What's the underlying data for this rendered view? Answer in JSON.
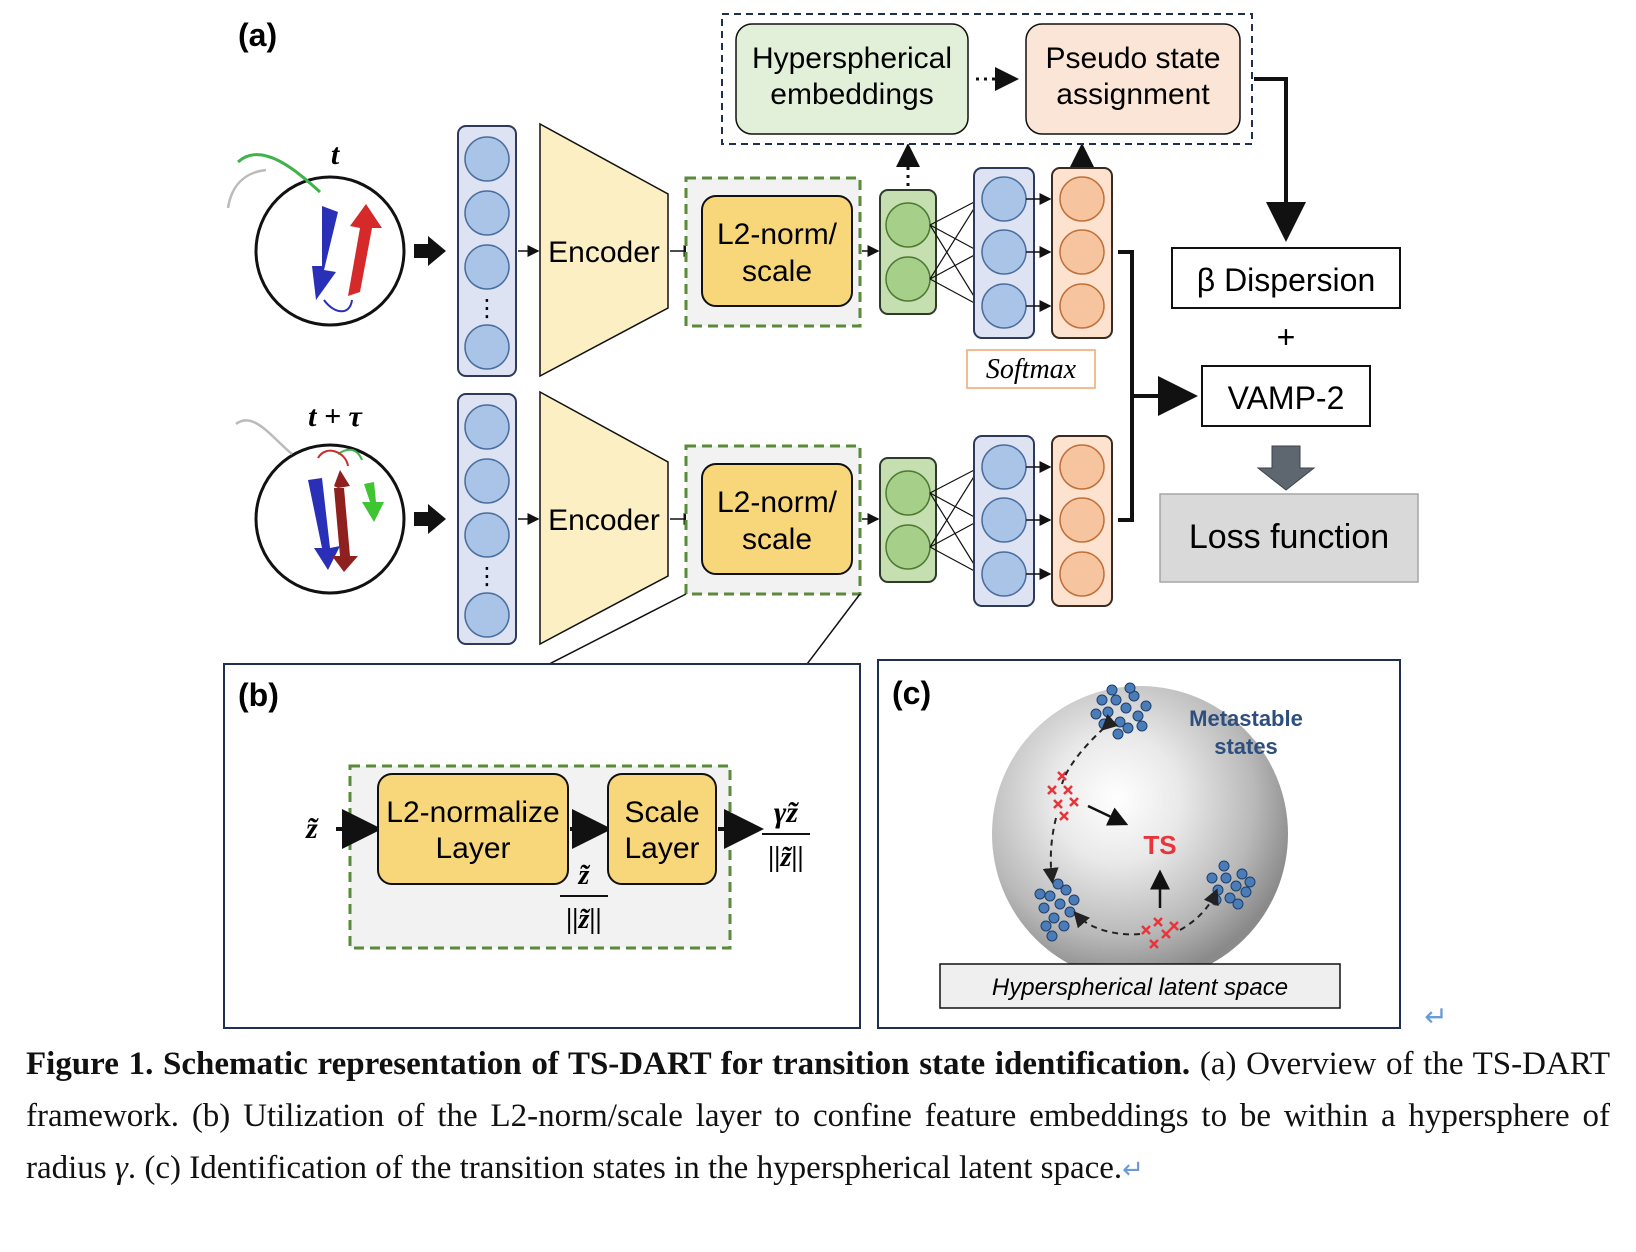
{
  "panel_labels": {
    "a": "(a)",
    "b": "(b)",
    "c": "(c)"
  },
  "panel_a": {
    "time_t": "t",
    "time_t_tau": "t + τ",
    "encoder_top": "Encoder",
    "encoder_bottom": "Encoder",
    "l2_top": [
      "L2-norm/",
      "scale"
    ],
    "l2_bottom": [
      "L2-norm/",
      "scale"
    ],
    "hyperspherical_embeddings": [
      "Hyperspherical",
      "embeddings"
    ],
    "pseudo_state_assignment": [
      "Pseudo state",
      "assignment"
    ],
    "softmax": "Softmax",
    "beta_dispersion": "β Dispersion",
    "plus": "+",
    "vamp2": "VAMP-2",
    "loss_function": "Loss function",
    "ellipsis": "⋮"
  },
  "panel_b": {
    "input_symbol": "z̃",
    "l2_normalize_layer": [
      "L2-normalize",
      "Layer"
    ],
    "scale_layer": [
      "Scale",
      "Layer"
    ],
    "mid_numerator": "z̃",
    "mid_denominator": "||z̃||",
    "out_numerator": "γz̃",
    "out_denominator": "||z̃||"
  },
  "panel_c": {
    "metastable_states": [
      "Metastable",
      "states"
    ],
    "ts_label": "TS",
    "latent_space_label": "Hyperspherical latent space"
  },
  "caption": {
    "bold": "Figure 1. Schematic representation of TS-DART for transition state identification.",
    "text_1": " (a) Overview of the TS-DART framework. (b) Utilization of the L2-norm/scale layer to confine feature embeddings to be within a hypersphere of radius ",
    "gamma": "γ",
    "text_2": ". (c) Identification of the transition states in the hyperspherical latent space.",
    "return_mark": "↵"
  },
  "colors": {
    "input_layer_fill": "#dde3f3",
    "neuron_blue": "#a9c4e6",
    "encoder_fill": "#fcefc4",
    "l2_fill": "#f8d77a",
    "l2_box_border": "#5a8a3a",
    "embed_fill": "#c5dfb0",
    "embed_neuron": "#a6cf8a",
    "softmax_fill": "#fde2cf",
    "softmax_neuron": "#f6c5a0",
    "hyper_box_fill": "#e2f0d9",
    "pseudo_box_fill": "#fbe5d6",
    "loss_fill": "#d9d9d9",
    "cluster_blue": "#3f6fa8",
    "ts_red": "#e8343a",
    "metastable_text": "#2e4f7e"
  }
}
